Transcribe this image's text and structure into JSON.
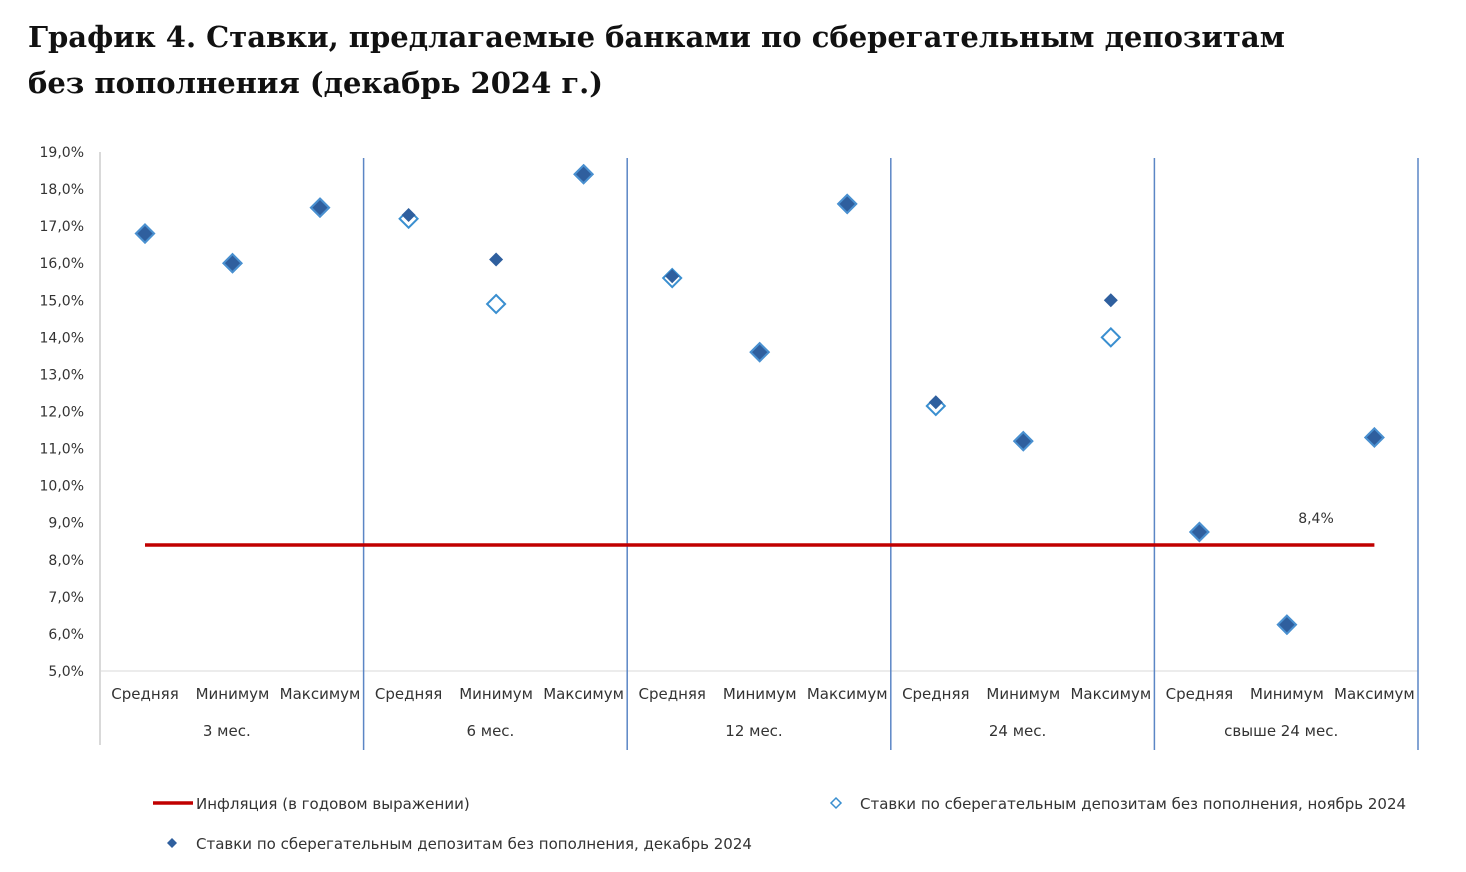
{
  "title": "График 4. Ставки, предлагаемые банками по сберегательным депозитам без пополнения (декабрь 2024 г.)",
  "chart_data": {
    "type": "scatter",
    "title": "График 4. Ставки, предлагаемые банками по сберегательным депозитам без пополнения (декабрь 2024 г.)",
    "ylim": [
      5.0,
      19.0
    ],
    "yticks": [
      "5,0%",
      "6,0%",
      "7,0%",
      "8,0%",
      "9,0%",
      "10,0%",
      "11,0%",
      "12,0%",
      "13,0%",
      "14,0%",
      "15,0%",
      "16,0%",
      "17,0%",
      "18,0%",
      "19,0%"
    ],
    "groups": [
      {
        "label": "3 мес.",
        "categories": [
          "Средняя",
          "Минимум",
          "Максимум"
        ]
      },
      {
        "label": "6 мес.",
        "categories": [
          "Средняя",
          "Минимум",
          "Максимум"
        ]
      },
      {
        "label": "12 мес.",
        "categories": [
          "Средняя",
          "Минимум",
          "Максимум"
        ]
      },
      {
        "label": "24 мес.",
        "categories": [
          "Средняя",
          "Минимум",
          "Максимум"
        ]
      },
      {
        "label": "свыше 24 мес.",
        "categories": [
          "Средняя",
          "Минимум",
          "Максимум"
        ]
      }
    ],
    "series": [
      {
        "name": "Ставки по сберегательным депозитам без пополнения, ноябрь 2024",
        "marker": "hollow-diamond",
        "color": "#3a8fd0",
        "values": [
          16.8,
          16.0,
          17.5,
          17.2,
          14.9,
          18.4,
          15.6,
          13.6,
          17.6,
          12.15,
          11.2,
          14.0,
          8.75,
          6.25,
          11.3
        ]
      },
      {
        "name": "Ставки по сберегательным депозитам без пополнения, декабрь 2024",
        "marker": "filled-diamond",
        "color": "#2f5f9e",
        "values": [
          16.8,
          16.0,
          17.5,
          17.3,
          16.1,
          18.4,
          15.65,
          13.6,
          17.6,
          12.25,
          11.2,
          15.0,
          8.75,
          6.25,
          11.3
        ]
      }
    ],
    "inflation": {
      "name": "Инфляция (в годовом выражении)",
      "value": 8.4,
      "label": "8,4%",
      "color": "#c00000"
    },
    "grid": false,
    "legend_position": "bottom"
  }
}
